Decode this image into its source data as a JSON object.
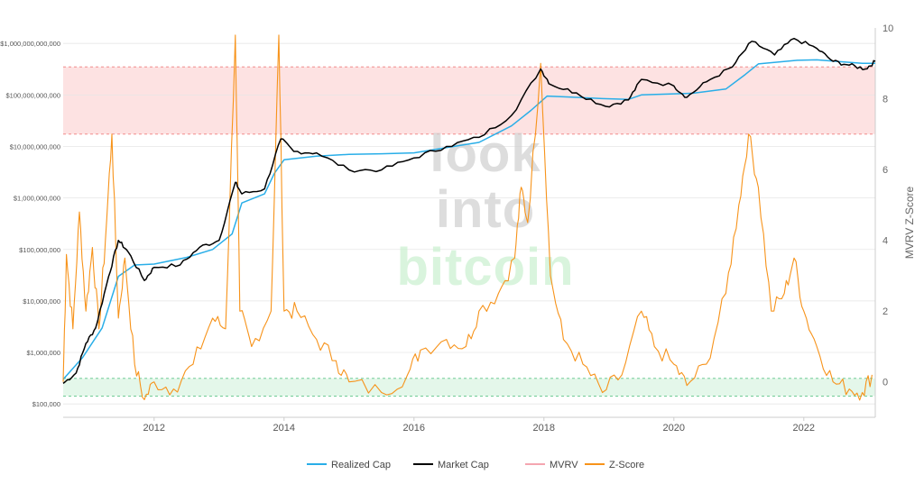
{
  "chart_data": {
    "type": "line",
    "title": "",
    "xlabel": "",
    "ylabel_left": "",
    "ylabel_right": "MVRV Z-Score",
    "watermark": [
      "look",
      "into",
      "bitcoin"
    ],
    "x_ticks": [
      "2012",
      "2014",
      "2016",
      "2018",
      "2020",
      "2022"
    ],
    "x_range": [
      2010.6,
      2023.1
    ],
    "y_left_scale": "log",
    "y_left_range": [
      55000,
      2000000000000
    ],
    "y_left_ticks": [
      {
        "value": 100000,
        "label": "$100,000"
      },
      {
        "value": 1000000,
        "label": "$1,000,000"
      },
      {
        "value": 10000000,
        "label": "$10,000,000"
      },
      {
        "value": 100000000,
        "label": "$100,000,000"
      },
      {
        "value": 1000000000,
        "label": "$1,000,000,000"
      },
      {
        "value": 10000000000,
        "label": "$10,000,000,000"
      },
      {
        "value": 100000000000,
        "label": "$100,000,000,000"
      },
      {
        "value": 1000000000000,
        "label": "$1,000,000,000,000"
      }
    ],
    "y_right_range": [
      -1,
      10
    ],
    "y_right_ticks": [
      0,
      2,
      4,
      6,
      8,
      10
    ],
    "bands": [
      {
        "name": "overvalued",
        "axis": "right",
        "from": 7,
        "to": 8.9,
        "color": "#fde2e2",
        "line_color": "#f08080"
      },
      {
        "name": "undervalued",
        "axis": "right",
        "from": -0.4,
        "to": 0.1,
        "color": "#e4f7ea",
        "line_color": "#5cc487"
      }
    ],
    "grid": true,
    "legend_position": "bottom-center",
    "series": [
      {
        "name": "Realized Cap",
        "axis": "left",
        "color": "#29aee8",
        "points": [
          [
            2010.6,
            300000
          ],
          [
            2010.9,
            800000
          ],
          [
            2011.2,
            3000000
          ],
          [
            2011.45,
            30000000
          ],
          [
            2011.7,
            50000000
          ],
          [
            2012.0,
            52000000
          ],
          [
            2012.5,
            70000000
          ],
          [
            2012.9,
            100000000
          ],
          [
            2013.2,
            200000000
          ],
          [
            2013.35,
            800000000
          ],
          [
            2013.7,
            1200000000
          ],
          [
            2013.85,
            3000000000
          ],
          [
            2014.0,
            5500000000
          ],
          [
            2014.5,
            6500000000
          ],
          [
            2015.0,
            7000000000
          ],
          [
            2015.5,
            7200000000
          ],
          [
            2016.0,
            7500000000
          ],
          [
            2016.5,
            9500000000
          ],
          [
            2017.0,
            12000000000
          ],
          [
            2017.5,
            25000000000
          ],
          [
            2017.8,
            50000000000
          ],
          [
            2018.05,
            95000000000
          ],
          [
            2018.5,
            90000000000
          ],
          [
            2018.9,
            85000000000
          ],
          [
            2019.3,
            82000000000
          ],
          [
            2019.5,
            100000000000
          ],
          [
            2020.0,
            105000000000
          ],
          [
            2020.3,
            108000000000
          ],
          [
            2020.8,
            130000000000
          ],
          [
            2021.1,
            250000000000
          ],
          [
            2021.3,
            400000000000
          ],
          [
            2021.9,
            470000000000
          ],
          [
            2022.2,
            480000000000
          ],
          [
            2022.6,
            440000000000
          ],
          [
            2022.9,
            410000000000
          ],
          [
            2023.1,
            410000000000
          ]
        ]
      },
      {
        "name": "Market Cap",
        "axis": "left",
        "color": "#000000",
        "points": [
          [
            2010.6,
            250000
          ],
          [
            2010.8,
            400000
          ],
          [
            2010.95,
            1500000
          ],
          [
            2011.1,
            3000000
          ],
          [
            2011.3,
            30000000
          ],
          [
            2011.45,
            150000000
          ],
          [
            2011.6,
            90000000
          ],
          [
            2011.85,
            25000000
          ],
          [
            2012.0,
            45000000
          ],
          [
            2012.4,
            50000000
          ],
          [
            2012.7,
            110000000
          ],
          [
            2013.0,
            150000000
          ],
          [
            2013.25,
            2000000000
          ],
          [
            2013.35,
            1200000000
          ],
          [
            2013.7,
            1500000000
          ],
          [
            2013.95,
            14000000000
          ],
          [
            2014.15,
            8000000000
          ],
          [
            2014.5,
            7500000000
          ],
          [
            2015.0,
            3500000000
          ],
          [
            2015.5,
            3500000000
          ],
          [
            2016.0,
            6000000000
          ],
          [
            2016.5,
            10000000000
          ],
          [
            2017.0,
            15000000000
          ],
          [
            2017.5,
            40000000000
          ],
          [
            2017.95,
            320000000000
          ],
          [
            2018.1,
            160000000000
          ],
          [
            2018.5,
            110000000000
          ],
          [
            2018.95,
            60000000000
          ],
          [
            2019.3,
            80000000000
          ],
          [
            2019.5,
            200000000000
          ],
          [
            2020.0,
            150000000000
          ],
          [
            2020.2,
            90000000000
          ],
          [
            2020.5,
            180000000000
          ],
          [
            2020.9,
            350000000000
          ],
          [
            2021.2,
            1100000000000
          ],
          [
            2021.55,
            600000000000
          ],
          [
            2021.85,
            1250000000000
          ],
          [
            2022.2,
            800000000000
          ],
          [
            2022.45,
            450000000000
          ],
          [
            2022.7,
            380000000000
          ],
          [
            2022.95,
            320000000000
          ],
          [
            2023.1,
            450000000000
          ]
        ]
      },
      {
        "name": "MVRV",
        "axis": "left",
        "color": "#f4a6b0",
        "points": []
      },
      {
        "name": "Z-Score",
        "axis": "right",
        "color": "#f7931a",
        "points": [
          [
            2010.6,
            0.0
          ],
          [
            2010.65,
            3.6
          ],
          [
            2010.75,
            1.5
          ],
          [
            2010.85,
            4.8
          ],
          [
            2010.95,
            2.0
          ],
          [
            2011.05,
            3.8
          ],
          [
            2011.15,
            1.5
          ],
          [
            2011.25,
            4.0
          ],
          [
            2011.35,
            7.0
          ],
          [
            2011.45,
            1.8
          ],
          [
            2011.55,
            3.5
          ],
          [
            2011.7,
            0.5
          ],
          [
            2011.85,
            -0.5
          ],
          [
            2012.0,
            0.0
          ],
          [
            2012.3,
            -0.2
          ],
          [
            2012.6,
            0.5
          ],
          [
            2012.9,
            1.8
          ],
          [
            2013.1,
            1.5
          ],
          [
            2013.25,
            9.8
          ],
          [
            2013.32,
            2.0
          ],
          [
            2013.5,
            1.0
          ],
          [
            2013.8,
            2.0
          ],
          [
            2013.92,
            9.8
          ],
          [
            2014.0,
            2.0
          ],
          [
            2014.2,
            2.0
          ],
          [
            2014.5,
            1.2
          ],
          [
            2014.8,
            0.6
          ],
          [
            2015.0,
            0.0
          ],
          [
            2015.5,
            -0.3
          ],
          [
            2015.9,
            0.2
          ],
          [
            2016.1,
            0.9
          ],
          [
            2016.5,
            1.2
          ],
          [
            2016.8,
            1.0
          ],
          [
            2017.0,
            2.0
          ],
          [
            2017.3,
            2.5
          ],
          [
            2017.55,
            3.5
          ],
          [
            2017.65,
            5.5
          ],
          [
            2017.75,
            4.5
          ],
          [
            2017.95,
            9.0
          ],
          [
            2018.1,
            3.0
          ],
          [
            2018.3,
            1.2
          ],
          [
            2018.6,
            0.5
          ],
          [
            2018.9,
            -0.3
          ],
          [
            2019.2,
            0.2
          ],
          [
            2019.5,
            2.0
          ],
          [
            2019.7,
            1.0
          ],
          [
            2020.0,
            0.5
          ],
          [
            2020.2,
            -0.1
          ],
          [
            2020.5,
            0.5
          ],
          [
            2020.8,
            2.5
          ],
          [
            2021.0,
            5.0
          ],
          [
            2021.15,
            7.0
          ],
          [
            2021.3,
            5.5
          ],
          [
            2021.5,
            2.0
          ],
          [
            2021.7,
            2.5
          ],
          [
            2021.85,
            3.5
          ],
          [
            2022.0,
            2.0
          ],
          [
            2022.2,
            1.0
          ],
          [
            2022.45,
            0.0
          ],
          [
            2022.7,
            -0.2
          ],
          [
            2022.9,
            -0.3
          ],
          [
            2023.05,
            0.2
          ]
        ]
      }
    ],
    "legend": [
      {
        "label": "Realized Cap",
        "color": "#29aee8"
      },
      {
        "label": "Market Cap",
        "color": "#000000"
      },
      {
        "label": "MVRV",
        "color": "#f4a6b0"
      },
      {
        "label": "Z-Score",
        "color": "#f7931a"
      }
    ]
  }
}
